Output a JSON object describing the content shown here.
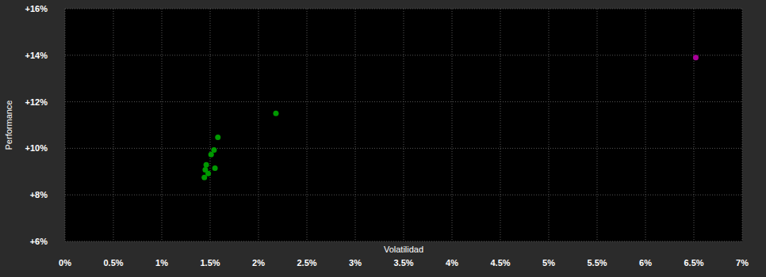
{
  "chart_data": {
    "type": "scatter",
    "x_label": "Volatilidad",
    "y_label": "Performance",
    "xlim": [
      0,
      7
    ],
    "ylim": [
      6,
      16
    ],
    "xticks": [
      {
        "value": 0,
        "label": "0%"
      },
      {
        "value": 0.5,
        "label": "0.5%"
      },
      {
        "value": 1,
        "label": "1%"
      },
      {
        "value": 1.5,
        "label": "1.5%"
      },
      {
        "value": 2,
        "label": "2%"
      },
      {
        "value": 2.5,
        "label": "2.5%"
      },
      {
        "value": 3,
        "label": "3%"
      },
      {
        "value": 3.5,
        "label": "3.5%"
      },
      {
        "value": 4,
        "label": "4%"
      },
      {
        "value": 4.5,
        "label": "4.5%"
      },
      {
        "value": 5,
        "label": "5%"
      },
      {
        "value": 5.5,
        "label": "5.5%"
      },
      {
        "value": 6,
        "label": "6%"
      },
      {
        "value": 6.5,
        "label": "6.5%"
      },
      {
        "value": 7,
        "label": "7%"
      }
    ],
    "yticks": [
      {
        "value": 6,
        "label": "+6%"
      },
      {
        "value": 8,
        "label": "+8%"
      },
      {
        "value": 10,
        "label": "+10%"
      },
      {
        "value": 12,
        "label": "+12%"
      },
      {
        "value": 14,
        "label": "+14%"
      },
      {
        "value": 16,
        "label": "+16%"
      }
    ],
    "grid": true,
    "series": [
      {
        "color": "#009900",
        "marker": "circle",
        "x": [
          2.18,
          1.58,
          1.54,
          1.51,
          1.46,
          1.45,
          1.48,
          1.55,
          1.44
        ],
        "values": [
          11.5,
          10.47,
          9.93,
          9.73,
          9.29,
          9.08,
          8.92,
          9.15,
          8.75
        ]
      },
      {
        "color": "#aa0099",
        "marker": "circle",
        "x": [
          6.52
        ],
        "values": [
          13.9
        ]
      }
    ]
  }
}
